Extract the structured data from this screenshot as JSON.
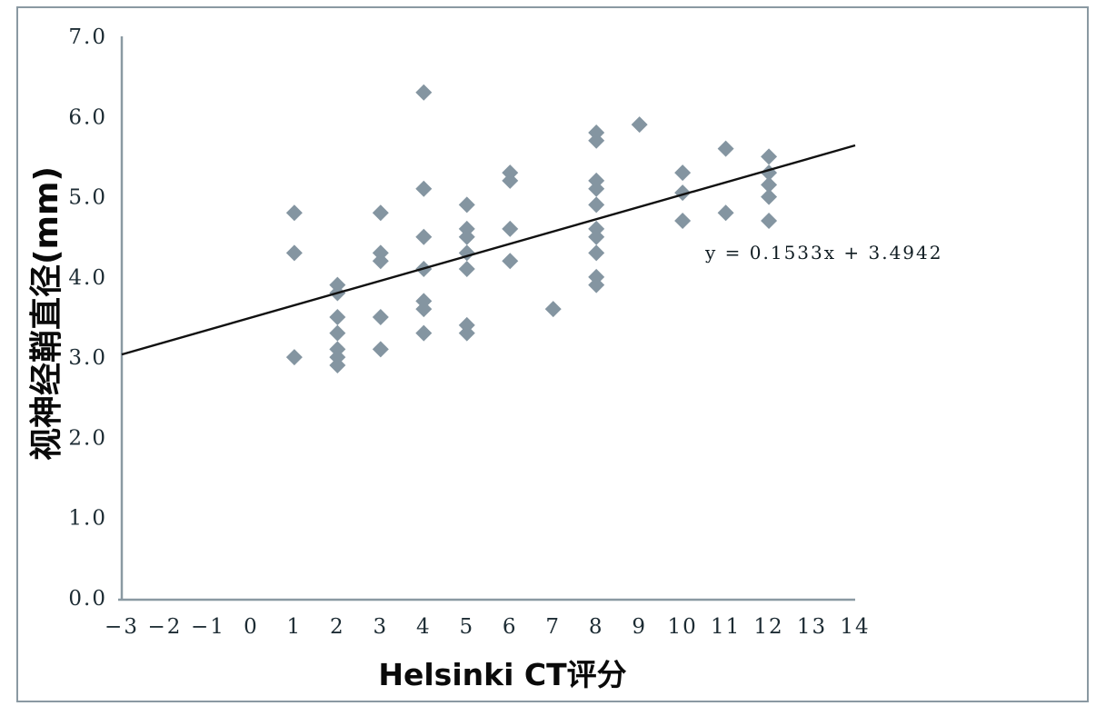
{
  "figure": {
    "background": "#ffffff",
    "border_color": "#8a99a2"
  },
  "chart_data": {
    "type": "scatter",
    "title": "",
    "xlabel": "Helsinki CT评分",
    "ylabel": "视神经鞘直径(mm)",
    "xlim": [
      -3,
      14
    ],
    "ylim": [
      0.0,
      7.0
    ],
    "x_ticks": [
      -3,
      -2,
      -1,
      0,
      1,
      2,
      3,
      4,
      5,
      6,
      7,
      8,
      9,
      10,
      11,
      12,
      13,
      14
    ],
    "y_ticks": [
      0.0,
      1.0,
      2.0,
      3.0,
      4.0,
      5.0,
      6.0,
      7.0
    ],
    "grid": false,
    "legend_position": "none",
    "marker": "diamond",
    "marker_color": "#8495a1",
    "axis_color": "#8a99a2",
    "tick_text_color": "#1c2b33",
    "trendline": {
      "label": "y = 0.1533x + 3.4942",
      "slope": 0.1533,
      "intercept": 3.4942,
      "x_start": -3,
      "x_end": 14,
      "color": "#111111"
    },
    "points": [
      [
        1,
        4.8
      ],
      [
        1,
        4.3
      ],
      [
        1,
        3.0
      ],
      [
        2,
        3.9
      ],
      [
        2,
        3.8
      ],
      [
        2,
        3.5
      ],
      [
        2,
        3.3
      ],
      [
        2,
        3.1
      ],
      [
        2,
        3.0
      ],
      [
        2,
        2.9
      ],
      [
        3,
        4.8
      ],
      [
        3,
        4.3
      ],
      [
        3,
        4.2
      ],
      [
        3,
        3.5
      ],
      [
        3,
        3.1
      ],
      [
        4,
        6.3
      ],
      [
        4,
        5.1
      ],
      [
        4,
        4.5
      ],
      [
        4,
        4.1
      ],
      [
        4,
        3.7
      ],
      [
        4,
        3.6
      ],
      [
        4,
        3.3
      ],
      [
        5,
        4.9
      ],
      [
        5,
        4.6
      ],
      [
        5,
        4.5
      ],
      [
        5,
        4.3
      ],
      [
        5,
        4.1
      ],
      [
        5,
        3.4
      ],
      [
        5,
        3.3
      ],
      [
        6,
        5.3
      ],
      [
        6,
        5.2
      ],
      [
        6,
        4.6
      ],
      [
        6,
        4.2
      ],
      [
        7,
        3.6
      ],
      [
        8,
        5.8
      ],
      [
        8,
        5.7
      ],
      [
        8,
        5.2
      ],
      [
        8,
        5.1
      ],
      [
        8,
        4.9
      ],
      [
        8,
        4.6
      ],
      [
        8,
        4.5
      ],
      [
        8,
        4.3
      ],
      [
        8,
        4.0
      ],
      [
        8,
        3.9
      ],
      [
        9,
        5.9
      ],
      [
        10,
        5.3
      ],
      [
        10,
        5.05
      ],
      [
        10,
        4.7
      ],
      [
        11,
        5.6
      ],
      [
        11,
        4.8
      ],
      [
        12,
        5.5
      ],
      [
        12,
        5.3
      ],
      [
        12,
        5.15
      ],
      [
        12,
        5.0
      ],
      [
        12,
        4.7
      ]
    ]
  }
}
